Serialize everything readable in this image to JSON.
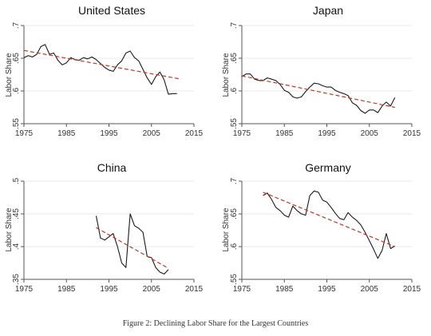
{
  "caption": "Figure 2: Declining Labor Share for the Largest Countries",
  "chart_data": [
    {
      "type": "line",
      "title": "United States",
      "ylabel": "Labor Share",
      "xlim": [
        1975,
        2015
      ],
      "ylim": [
        0.55,
        0.7
      ],
      "xticks": [
        1975,
        1985,
        1995,
        2005,
        2015
      ],
      "yticks": [
        0.55,
        0.6,
        0.65,
        0.7
      ],
      "ytick_labels": [
        ".55",
        ".6",
        ".65",
        ".7"
      ],
      "grid": true,
      "series": [
        {
          "kind": "observed",
          "x": [
            1975,
            1976,
            1977,
            1978,
            1979,
            1980,
            1981,
            1982,
            1983,
            1984,
            1985,
            1986,
            1987,
            1988,
            1989,
            1990,
            1991,
            1992,
            1993,
            1994,
            1995,
            1996,
            1997,
            1998,
            1999,
            2000,
            2001,
            2002,
            2003,
            2004,
            2005,
            2006,
            2007,
            2008,
            2009,
            2010,
            2011
          ],
          "y": [
            0.651,
            0.654,
            0.652,
            0.656,
            0.668,
            0.671,
            0.656,
            0.658,
            0.647,
            0.64,
            0.643,
            0.651,
            0.648,
            0.647,
            0.651,
            0.649,
            0.652,
            0.648,
            0.642,
            0.636,
            0.632,
            0.63,
            0.64,
            0.646,
            0.658,
            0.661,
            0.651,
            0.646,
            0.633,
            0.62,
            0.61,
            0.622,
            0.629,
            0.617,
            0.595,
            0.596,
            0.596
          ]
        },
        {
          "kind": "trend",
          "x": [
            1975,
            2012
          ],
          "y": [
            0.662,
            0.618
          ]
        }
      ]
    },
    {
      "type": "line",
      "title": "Japan",
      "ylabel": "Labor Share",
      "xlim": [
        1975,
        2015
      ],
      "ylim": [
        0.55,
        0.7
      ],
      "xticks": [
        1975,
        1985,
        1995,
        2005,
        2015
      ],
      "yticks": [
        0.55,
        0.6,
        0.65,
        0.7
      ],
      "ytick_labels": [
        ".55",
        ".6",
        ".65",
        ".7"
      ],
      "grid": true,
      "series": [
        {
          "kind": "observed",
          "x": [
            1975,
            1976,
            1977,
            1978,
            1979,
            1980,
            1981,
            1982,
            1983,
            1984,
            1985,
            1986,
            1987,
            1988,
            1989,
            1990,
            1991,
            1992,
            1993,
            1994,
            1995,
            1996,
            1997,
            1998,
            1999,
            2000,
            2001,
            2002,
            2003,
            2004,
            2005,
            2006,
            2007,
            2008,
            2009,
            2010,
            2011
          ],
          "y": [
            0.622,
            0.626,
            0.626,
            0.618,
            0.616,
            0.616,
            0.62,
            0.618,
            0.616,
            0.61,
            0.601,
            0.598,
            0.591,
            0.589,
            0.591,
            0.599,
            0.606,
            0.612,
            0.611,
            0.608,
            0.606,
            0.606,
            0.601,
            0.598,
            0.596,
            0.593,
            0.582,
            0.578,
            0.57,
            0.566,
            0.571,
            0.571,
            0.567,
            0.577,
            0.583,
            0.577,
            0.59
          ]
        },
        {
          "kind": "trend",
          "x": [
            1975,
            2011
          ],
          "y": [
            0.623,
            0.575
          ]
        }
      ]
    },
    {
      "type": "line",
      "title": "China",
      "ylabel": "Labor Share",
      "xlim": [
        1975,
        2015
      ],
      "ylim": [
        0.35,
        0.5
      ],
      "xticks": [
        1975,
        1985,
        1995,
        2005,
        2015
      ],
      "yticks": [
        0.35,
        0.4,
        0.45,
        0.5
      ],
      "ytick_labels": [
        ".35",
        ".4",
        ".45",
        ".5"
      ],
      "grid": true,
      "series": [
        {
          "kind": "observed",
          "x": [
            1992,
            1993,
            1994,
            1995,
            1996,
            1997,
            1998,
            1999,
            2000,
            2001,
            2002,
            2003,
            2004,
            2005,
            2006,
            2007,
            2008,
            2009
          ],
          "y": [
            0.447,
            0.413,
            0.41,
            0.415,
            0.42,
            0.4,
            0.375,
            0.368,
            0.45,
            0.432,
            0.428,
            0.422,
            0.385,
            0.383,
            0.368,
            0.361,
            0.358,
            0.365
          ]
        },
        {
          "kind": "trend",
          "x": [
            1992,
            2009
          ],
          "y": [
            0.429,
            0.367
          ]
        }
      ]
    },
    {
      "type": "line",
      "title": "Germany",
      "ylabel": "Labor Share",
      "xlim": [
        1975,
        2015
      ],
      "ylim": [
        0.55,
        0.7
      ],
      "xticks": [
        1975,
        1985,
        1995,
        2005,
        2015
      ],
      "yticks": [
        0.55,
        0.6,
        0.65,
        0.7
      ],
      "ytick_labels": [
        ".55",
        ".6",
        ".65",
        ".7"
      ],
      "grid": true,
      "series": [
        {
          "kind": "observed",
          "x": [
            1980,
            1981,
            1982,
            1983,
            1984,
            1985,
            1986,
            1987,
            1988,
            1989,
            1990,
            1991,
            1992,
            1993,
            1994,
            1995,
            1996,
            1997,
            1998,
            1999,
            2000,
            2001,
            2002,
            2003,
            2004,
            2005,
            2006,
            2007,
            2008,
            2009,
            2010,
            2011
          ],
          "y": [
            0.678,
            0.682,
            0.672,
            0.66,
            0.655,
            0.648,
            0.645,
            0.662,
            0.655,
            0.65,
            0.648,
            0.678,
            0.685,
            0.683,
            0.671,
            0.668,
            0.66,
            0.651,
            0.643,
            0.641,
            0.652,
            0.645,
            0.64,
            0.633,
            0.622,
            0.609,
            0.596,
            0.582,
            0.594,
            0.62,
            0.597,
            0.601
          ]
        },
        {
          "kind": "trend",
          "x": [
            1980,
            2011
          ],
          "y": [
            0.683,
            0.6
          ]
        }
      ]
    }
  ]
}
